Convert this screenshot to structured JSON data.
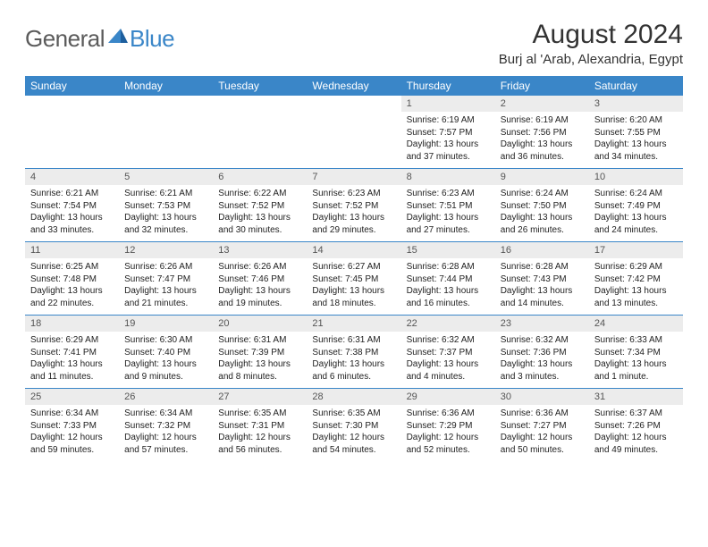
{
  "brand": {
    "name1": "General",
    "name2": "Blue"
  },
  "title": "August 2024",
  "location": "Burj al 'Arab, Alexandria, Egypt",
  "colors": {
    "header_bg": "#3a86c8",
    "header_text": "#ffffff",
    "daynum_bg": "#ececec",
    "row_divider": "#3a86c8",
    "text": "#222222",
    "logo_gray": "#5b5b5b",
    "logo_blue": "#3a86c8"
  },
  "weekdays": [
    "Sunday",
    "Monday",
    "Tuesday",
    "Wednesday",
    "Thursday",
    "Friday",
    "Saturday"
  ],
  "weeks": [
    [
      {
        "empty": true
      },
      {
        "empty": true
      },
      {
        "empty": true
      },
      {
        "empty": true
      },
      {
        "day": "1",
        "sunrise": "Sunrise: 6:19 AM",
        "sunset": "Sunset: 7:57 PM",
        "daylight": "Daylight: 13 hours and 37 minutes."
      },
      {
        "day": "2",
        "sunrise": "Sunrise: 6:19 AM",
        "sunset": "Sunset: 7:56 PM",
        "daylight": "Daylight: 13 hours and 36 minutes."
      },
      {
        "day": "3",
        "sunrise": "Sunrise: 6:20 AM",
        "sunset": "Sunset: 7:55 PM",
        "daylight": "Daylight: 13 hours and 34 minutes."
      }
    ],
    [
      {
        "day": "4",
        "sunrise": "Sunrise: 6:21 AM",
        "sunset": "Sunset: 7:54 PM",
        "daylight": "Daylight: 13 hours and 33 minutes."
      },
      {
        "day": "5",
        "sunrise": "Sunrise: 6:21 AM",
        "sunset": "Sunset: 7:53 PM",
        "daylight": "Daylight: 13 hours and 32 minutes."
      },
      {
        "day": "6",
        "sunrise": "Sunrise: 6:22 AM",
        "sunset": "Sunset: 7:52 PM",
        "daylight": "Daylight: 13 hours and 30 minutes."
      },
      {
        "day": "7",
        "sunrise": "Sunrise: 6:23 AM",
        "sunset": "Sunset: 7:52 PM",
        "daylight": "Daylight: 13 hours and 29 minutes."
      },
      {
        "day": "8",
        "sunrise": "Sunrise: 6:23 AM",
        "sunset": "Sunset: 7:51 PM",
        "daylight": "Daylight: 13 hours and 27 minutes."
      },
      {
        "day": "9",
        "sunrise": "Sunrise: 6:24 AM",
        "sunset": "Sunset: 7:50 PM",
        "daylight": "Daylight: 13 hours and 26 minutes."
      },
      {
        "day": "10",
        "sunrise": "Sunrise: 6:24 AM",
        "sunset": "Sunset: 7:49 PM",
        "daylight": "Daylight: 13 hours and 24 minutes."
      }
    ],
    [
      {
        "day": "11",
        "sunrise": "Sunrise: 6:25 AM",
        "sunset": "Sunset: 7:48 PM",
        "daylight": "Daylight: 13 hours and 22 minutes."
      },
      {
        "day": "12",
        "sunrise": "Sunrise: 6:26 AM",
        "sunset": "Sunset: 7:47 PM",
        "daylight": "Daylight: 13 hours and 21 minutes."
      },
      {
        "day": "13",
        "sunrise": "Sunrise: 6:26 AM",
        "sunset": "Sunset: 7:46 PM",
        "daylight": "Daylight: 13 hours and 19 minutes."
      },
      {
        "day": "14",
        "sunrise": "Sunrise: 6:27 AM",
        "sunset": "Sunset: 7:45 PM",
        "daylight": "Daylight: 13 hours and 18 minutes."
      },
      {
        "day": "15",
        "sunrise": "Sunrise: 6:28 AM",
        "sunset": "Sunset: 7:44 PM",
        "daylight": "Daylight: 13 hours and 16 minutes."
      },
      {
        "day": "16",
        "sunrise": "Sunrise: 6:28 AM",
        "sunset": "Sunset: 7:43 PM",
        "daylight": "Daylight: 13 hours and 14 minutes."
      },
      {
        "day": "17",
        "sunrise": "Sunrise: 6:29 AM",
        "sunset": "Sunset: 7:42 PM",
        "daylight": "Daylight: 13 hours and 13 minutes."
      }
    ],
    [
      {
        "day": "18",
        "sunrise": "Sunrise: 6:29 AM",
        "sunset": "Sunset: 7:41 PM",
        "daylight": "Daylight: 13 hours and 11 minutes."
      },
      {
        "day": "19",
        "sunrise": "Sunrise: 6:30 AM",
        "sunset": "Sunset: 7:40 PM",
        "daylight": "Daylight: 13 hours and 9 minutes."
      },
      {
        "day": "20",
        "sunrise": "Sunrise: 6:31 AM",
        "sunset": "Sunset: 7:39 PM",
        "daylight": "Daylight: 13 hours and 8 minutes."
      },
      {
        "day": "21",
        "sunrise": "Sunrise: 6:31 AM",
        "sunset": "Sunset: 7:38 PM",
        "daylight": "Daylight: 13 hours and 6 minutes."
      },
      {
        "day": "22",
        "sunrise": "Sunrise: 6:32 AM",
        "sunset": "Sunset: 7:37 PM",
        "daylight": "Daylight: 13 hours and 4 minutes."
      },
      {
        "day": "23",
        "sunrise": "Sunrise: 6:32 AM",
        "sunset": "Sunset: 7:36 PM",
        "daylight": "Daylight: 13 hours and 3 minutes."
      },
      {
        "day": "24",
        "sunrise": "Sunrise: 6:33 AM",
        "sunset": "Sunset: 7:34 PM",
        "daylight": "Daylight: 13 hours and 1 minute."
      }
    ],
    [
      {
        "day": "25",
        "sunrise": "Sunrise: 6:34 AM",
        "sunset": "Sunset: 7:33 PM",
        "daylight": "Daylight: 12 hours and 59 minutes."
      },
      {
        "day": "26",
        "sunrise": "Sunrise: 6:34 AM",
        "sunset": "Sunset: 7:32 PM",
        "daylight": "Daylight: 12 hours and 57 minutes."
      },
      {
        "day": "27",
        "sunrise": "Sunrise: 6:35 AM",
        "sunset": "Sunset: 7:31 PM",
        "daylight": "Daylight: 12 hours and 56 minutes."
      },
      {
        "day": "28",
        "sunrise": "Sunrise: 6:35 AM",
        "sunset": "Sunset: 7:30 PM",
        "daylight": "Daylight: 12 hours and 54 minutes."
      },
      {
        "day": "29",
        "sunrise": "Sunrise: 6:36 AM",
        "sunset": "Sunset: 7:29 PM",
        "daylight": "Daylight: 12 hours and 52 minutes."
      },
      {
        "day": "30",
        "sunrise": "Sunrise: 6:36 AM",
        "sunset": "Sunset: 7:27 PM",
        "daylight": "Daylight: 12 hours and 50 minutes."
      },
      {
        "day": "31",
        "sunrise": "Sunrise: 6:37 AM",
        "sunset": "Sunset: 7:26 PM",
        "daylight": "Daylight: 12 hours and 49 minutes."
      }
    ]
  ]
}
